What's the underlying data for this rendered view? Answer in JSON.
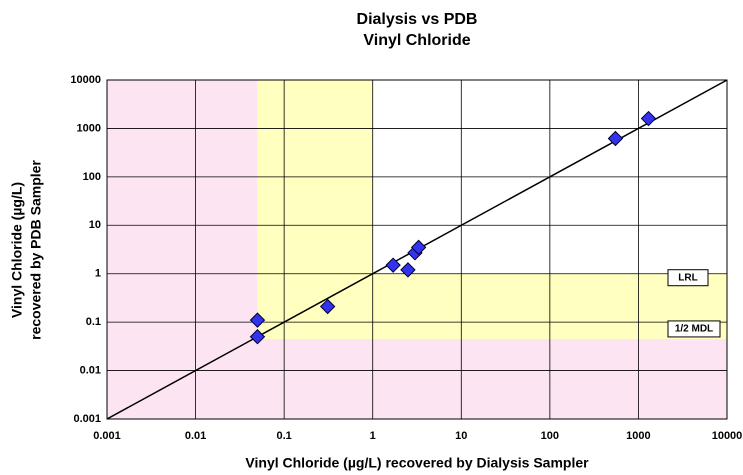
{
  "chart_data": {
    "type": "scatter",
    "title": [
      "Dialysis vs PDB",
      "Vinyl Chloride"
    ],
    "x_label": "Vinyl Chloride (µg/L) recovered by Dialysis Sampler",
    "y_label": [
      "Vinyl Chloride (µg/L)",
      "recovered by PDB Sampler"
    ],
    "log_x": true,
    "log_y": true,
    "grid": true,
    "xlim": [
      0.001,
      10000
    ],
    "ylim": [
      0.001,
      10000
    ],
    "xticks": [
      0.001,
      0.01,
      0.1,
      1,
      10,
      100,
      1000,
      10000
    ],
    "yticks": [
      0.001,
      0.01,
      0.1,
      1,
      10,
      100,
      1000,
      10000
    ],
    "series": [
      {
        "color": "#3333ee",
        "x": [
          0.05,
          0.05,
          0.31,
          1.7,
          2.5,
          3,
          3.3,
          550,
          1300
        ],
        "values": [
          0.11,
          0.05,
          0.21,
          1.5,
          1.2,
          2.7,
          3.5,
          620,
          1600
        ]
      }
    ],
    "reference_line": {
      "color": "#000000",
      "x": [
        0.001,
        10000
      ],
      "values": [
        0.001,
        10000
      ]
    },
    "annotations": [
      {
        "text": "LRL",
        "x": 1,
        "y": 1,
        "color": "#ffffc0"
      },
      {
        "text": "1/2 MDL",
        "x": 0.05,
        "y": 0.045,
        "color": "#fce4f2"
      }
    ]
  }
}
